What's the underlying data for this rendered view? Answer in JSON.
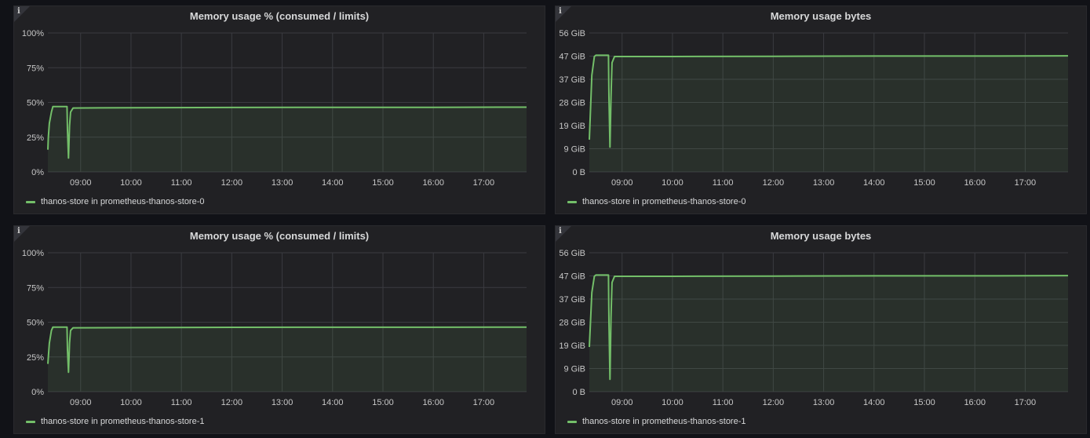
{
  "colors": {
    "series": "#73bf69",
    "grid": "#3a3b40",
    "tick": "#c7c7c7"
  },
  "panels": [
    {
      "title": "Memory usage % (consumed / limits)",
      "legend": "thanos-store in prometheus-thanos-store-0"
    },
    {
      "title": "Memory usage bytes",
      "legend": "thanos-store in prometheus-thanos-store-0"
    },
    {
      "title": "Memory usage % (consumed / limits)",
      "legend": "thanos-store in prometheus-thanos-store-1"
    },
    {
      "title": "Memory usage bytes",
      "legend": "thanos-store in prometheus-thanos-store-1"
    }
  ],
  "chart_data": [
    {
      "type": "area",
      "title": "Memory usage % (consumed / limits)",
      "x_unit": "time (hours)",
      "x_ticks": [
        "09:00",
        "10:00",
        "11:00",
        "12:00",
        "13:00",
        "14:00",
        "15:00",
        "16:00",
        "17:00"
      ],
      "xlim": [
        8.35,
        17.85
      ],
      "y_ticks": [
        "100%",
        "75%",
        "50%",
        "25%",
        "0%"
      ],
      "ylim": [
        0,
        100
      ],
      "series": [
        {
          "name": "thanos-store in prometheus-thanos-store-0",
          "x": [
            8.35,
            8.36,
            8.38,
            8.42,
            8.45,
            8.7,
            8.71,
            8.72,
            8.73,
            8.74,
            8.76,
            8.78,
            8.8,
            8.85,
            10,
            12,
            14,
            16,
            17.85
          ],
          "y": [
            16,
            25,
            35,
            43,
            47,
            47,
            47,
            47,
            47,
            30,
            10,
            33,
            43,
            46,
            46.2,
            46.4,
            46.5,
            46.5,
            46.6
          ]
        }
      ]
    },
    {
      "type": "area",
      "title": "Memory usage bytes",
      "x_unit": "time (hours)",
      "x_ticks": [
        "09:00",
        "10:00",
        "11:00",
        "12:00",
        "13:00",
        "14:00",
        "15:00",
        "16:00",
        "17:00"
      ],
      "xlim": [
        8.35,
        17.85
      ],
      "y_ticks": [
        "56 GiB",
        "47 GiB",
        "37 GiB",
        "28 GiB",
        "19 GiB",
        "9 GiB",
        "0 B"
      ],
      "ylim": [
        0,
        56
      ],
      "series": [
        {
          "name": "thanos-store in prometheus-thanos-store-0",
          "x": [
            8.35,
            8.4,
            8.45,
            8.48,
            8.6,
            8.7,
            8.71,
            8.72,
            8.73,
            8.74,
            8.76,
            8.78,
            8.8,
            8.85,
            10,
            12,
            14,
            16,
            17.85
          ],
          "y": [
            13,
            39,
            46.5,
            47,
            47,
            47,
            47,
            47,
            47,
            30,
            10,
            30,
            44,
            46.5,
            46.5,
            46.6,
            46.7,
            46.7,
            46.8
          ]
        }
      ]
    },
    {
      "type": "area",
      "title": "Memory usage % (consumed / limits)",
      "x_unit": "time (hours)",
      "x_ticks": [
        "09:00",
        "10:00",
        "11:00",
        "12:00",
        "13:00",
        "14:00",
        "15:00",
        "16:00",
        "17:00"
      ],
      "xlim": [
        8.35,
        17.85
      ],
      "y_ticks": [
        "100%",
        "75%",
        "50%",
        "25%",
        "0%"
      ],
      "ylim": [
        0,
        100
      ],
      "series": [
        {
          "name": "thanos-store in prometheus-thanos-store-1",
          "x": [
            8.35,
            8.36,
            8.38,
            8.42,
            8.45,
            8.7,
            8.71,
            8.72,
            8.73,
            8.74,
            8.76,
            8.78,
            8.8,
            8.85,
            10,
            12,
            14,
            16,
            17.85
          ],
          "y": [
            20,
            25,
            35,
            44,
            46.5,
            46.5,
            46.5,
            46.5,
            46.5,
            30,
            14,
            35,
            44,
            46,
            46.1,
            46.3,
            46.4,
            46.4,
            46.5
          ]
        }
      ]
    },
    {
      "type": "area",
      "title": "Memory usage bytes",
      "x_unit": "time (hours)",
      "x_ticks": [
        "09:00",
        "10:00",
        "11:00",
        "12:00",
        "13:00",
        "14:00",
        "15:00",
        "16:00",
        "17:00"
      ],
      "xlim": [
        8.35,
        17.85
      ],
      "y_ticks": [
        "56 GiB",
        "47 GiB",
        "37 GiB",
        "28 GiB",
        "19 GiB",
        "9 GiB",
        "0 B"
      ],
      "ylim": [
        0,
        56
      ],
      "series": [
        {
          "name": "thanos-store in prometheus-thanos-store-1",
          "x": [
            8.35,
            8.4,
            8.45,
            8.48,
            8.6,
            8.7,
            8.71,
            8.72,
            8.73,
            8.74,
            8.76,
            8.78,
            8.8,
            8.85,
            10,
            12,
            14,
            16,
            17.85
          ],
          "y": [
            18,
            40,
            46.5,
            47,
            47,
            47,
            47,
            47,
            47,
            28,
            5,
            30,
            44,
            46.5,
            46.5,
            46.6,
            46.7,
            46.7,
            46.8
          ]
        }
      ]
    }
  ]
}
